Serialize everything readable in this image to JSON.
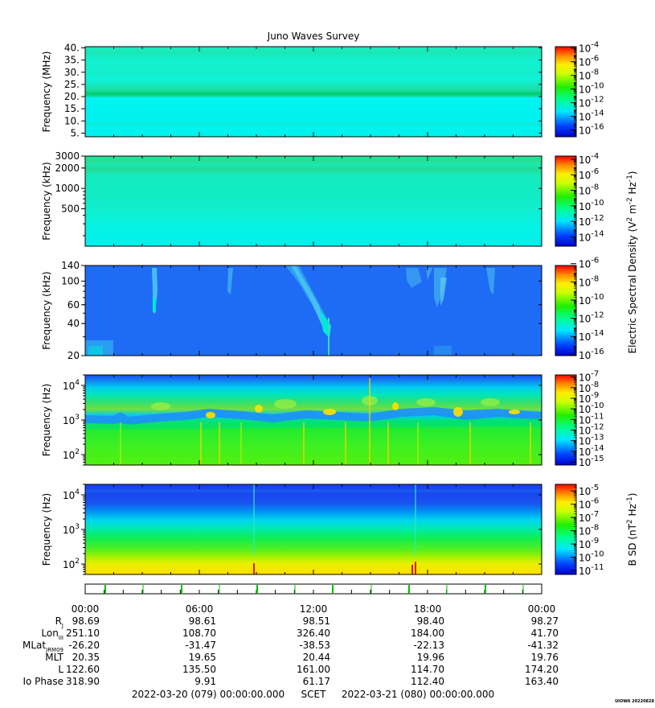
{
  "title": "Juno Waves Survey",
  "chart_data": [
    {
      "type": "heatmap",
      "ylabel": "Frequency (MHz)",
      "ylim": [
        3.5,
        40.5
      ],
      "y_scale": "linear",
      "yticks": [
        "40.",
        "35.",
        "30.",
        "25.",
        "20.",
        "15.",
        "10.",
        "5."
      ],
      "ytick_values": [
        40,
        35,
        30,
        25,
        20,
        15,
        10,
        5
      ],
      "colorbar": {
        "ticks_exp": [
          "-4",
          "-6",
          "-8",
          "-10",
          "-12",
          "-14",
          "-16"
        ],
        "range_exp": [
          -17,
          -3.8
        ]
      },
      "bands": [
        21.2
      ]
    },
    {
      "type": "heatmap",
      "ylabel": "Frequency (kHz)",
      "ylim": [
        140,
        3000
      ],
      "y_scale": "log",
      "yticks": [
        "3000",
        "2000",
        "1000",
        "500"
      ],
      "ytick_values": [
        3000,
        2000,
        1000,
        500
      ],
      "colorbar": {
        "ticks_exp": [
          "-4",
          "-6",
          "-8",
          "-10",
          "-12",
          "-14"
        ],
        "range_exp": [
          -15.2,
          -3.6
        ]
      }
    },
    {
      "type": "heatmap",
      "ylabel": "Frequency (kHz)",
      "ylim": [
        20,
        140
      ],
      "y_scale": "log",
      "yticks": [
        "140",
        "100",
        "60",
        "40",
        "20"
      ],
      "ytick_values": [
        140,
        100,
        60,
        40,
        20
      ],
      "colorbar": {
        "ticks_exp": [
          "-6",
          "-8",
          "-10",
          "-12",
          "-14",
          "-16"
        ],
        "range_exp": [
          -16.1,
          -6.2
        ]
      }
    },
    {
      "type": "heatmap",
      "ylabel": "Frequency (Hz)",
      "ylim": [
        50,
        20000
      ],
      "y_scale": "log",
      "yticks_base": "10",
      "yticks_exp": [
        "4",
        "3",
        "2"
      ],
      "ytick_values": [
        10000,
        1000,
        100
      ],
      "colorbar": {
        "ticks_exp": [
          "-7",
          "-8",
          "-9",
          "-10",
          "-11",
          "-12",
          "-13",
          "-14",
          "-15"
        ],
        "range_exp": [
          -15.3,
          -6.8
        ]
      }
    },
    {
      "type": "heatmap",
      "ylabel": "Frequency (Hz)",
      "ylim": [
        50,
        20000
      ],
      "y_scale": "log",
      "yticks_base": "10",
      "yticks_exp": [
        "4",
        "3",
        "2"
      ],
      "ytick_values": [
        10000,
        1000,
        100
      ],
      "colorbar": {
        "ticks_exp": [
          "-5",
          "-6",
          "-7",
          "-8",
          "-9",
          "-10",
          "-11"
        ],
        "range_exp": [
          -11.3,
          -4.5
        ]
      }
    }
  ],
  "colorbar_labels": {
    "electric": {
      "prefix": "Electric Spectral Density (V",
      "sup1": "2",
      "mid1": " m",
      "sup2": "-2",
      "mid2": " Hz",
      "sup3": "-1",
      "suffix": ")"
    },
    "magnetic": {
      "prefix": "B SD (nT",
      "sup1": "2",
      "mid1": " Hz",
      "sup2": "-1",
      "suffix": ")"
    }
  },
  "colorbar_tick_base": "10",
  "time_axis": {
    "ticks": [
      "00:00",
      "06:00",
      "12:00",
      "18:00",
      "00:00"
    ],
    "rows": [
      {
        "label": "R",
        "sub": "J",
        "values": [
          "98.69",
          "98.61",
          "98.51",
          "98.40",
          "98.27"
        ]
      },
      {
        "label": "Lon",
        "sub": "III",
        "values": [
          "251.10",
          "108.70",
          "326.40",
          "184.00",
          "41.70"
        ]
      },
      {
        "label": "MLat",
        "sub": "JRM09",
        "values": [
          "-26.20",
          "-31.47",
          "-38.53",
          "-22.13",
          "-41.32"
        ]
      },
      {
        "label": "MLT",
        "sub": "",
        "values": [
          "20.35",
          "19.65",
          "20.44",
          "19.96",
          "19.76"
        ]
      },
      {
        "label": "L",
        "sub": "",
        "values": [
          "122.60",
          "135.50",
          "161.00",
          "114.70",
          "174.20"
        ]
      },
      {
        "label": "Io Phase",
        "sub": "",
        "values": [
          "318.90",
          "9.91",
          "61.17",
          "112.40",
          "163.40"
        ]
      }
    ]
  },
  "footer": {
    "start": "2022-03-20 (079) 00:00:00.000",
    "mid": "SCET",
    "end": "2022-03-21 (080) 00:00:00.000",
    "credit": "UIOWA 20220828"
  },
  "colors": {
    "bg_cyan": "#00f0e8",
    "deep_blue": "#1e6cf5",
    "green": "#00e060"
  }
}
